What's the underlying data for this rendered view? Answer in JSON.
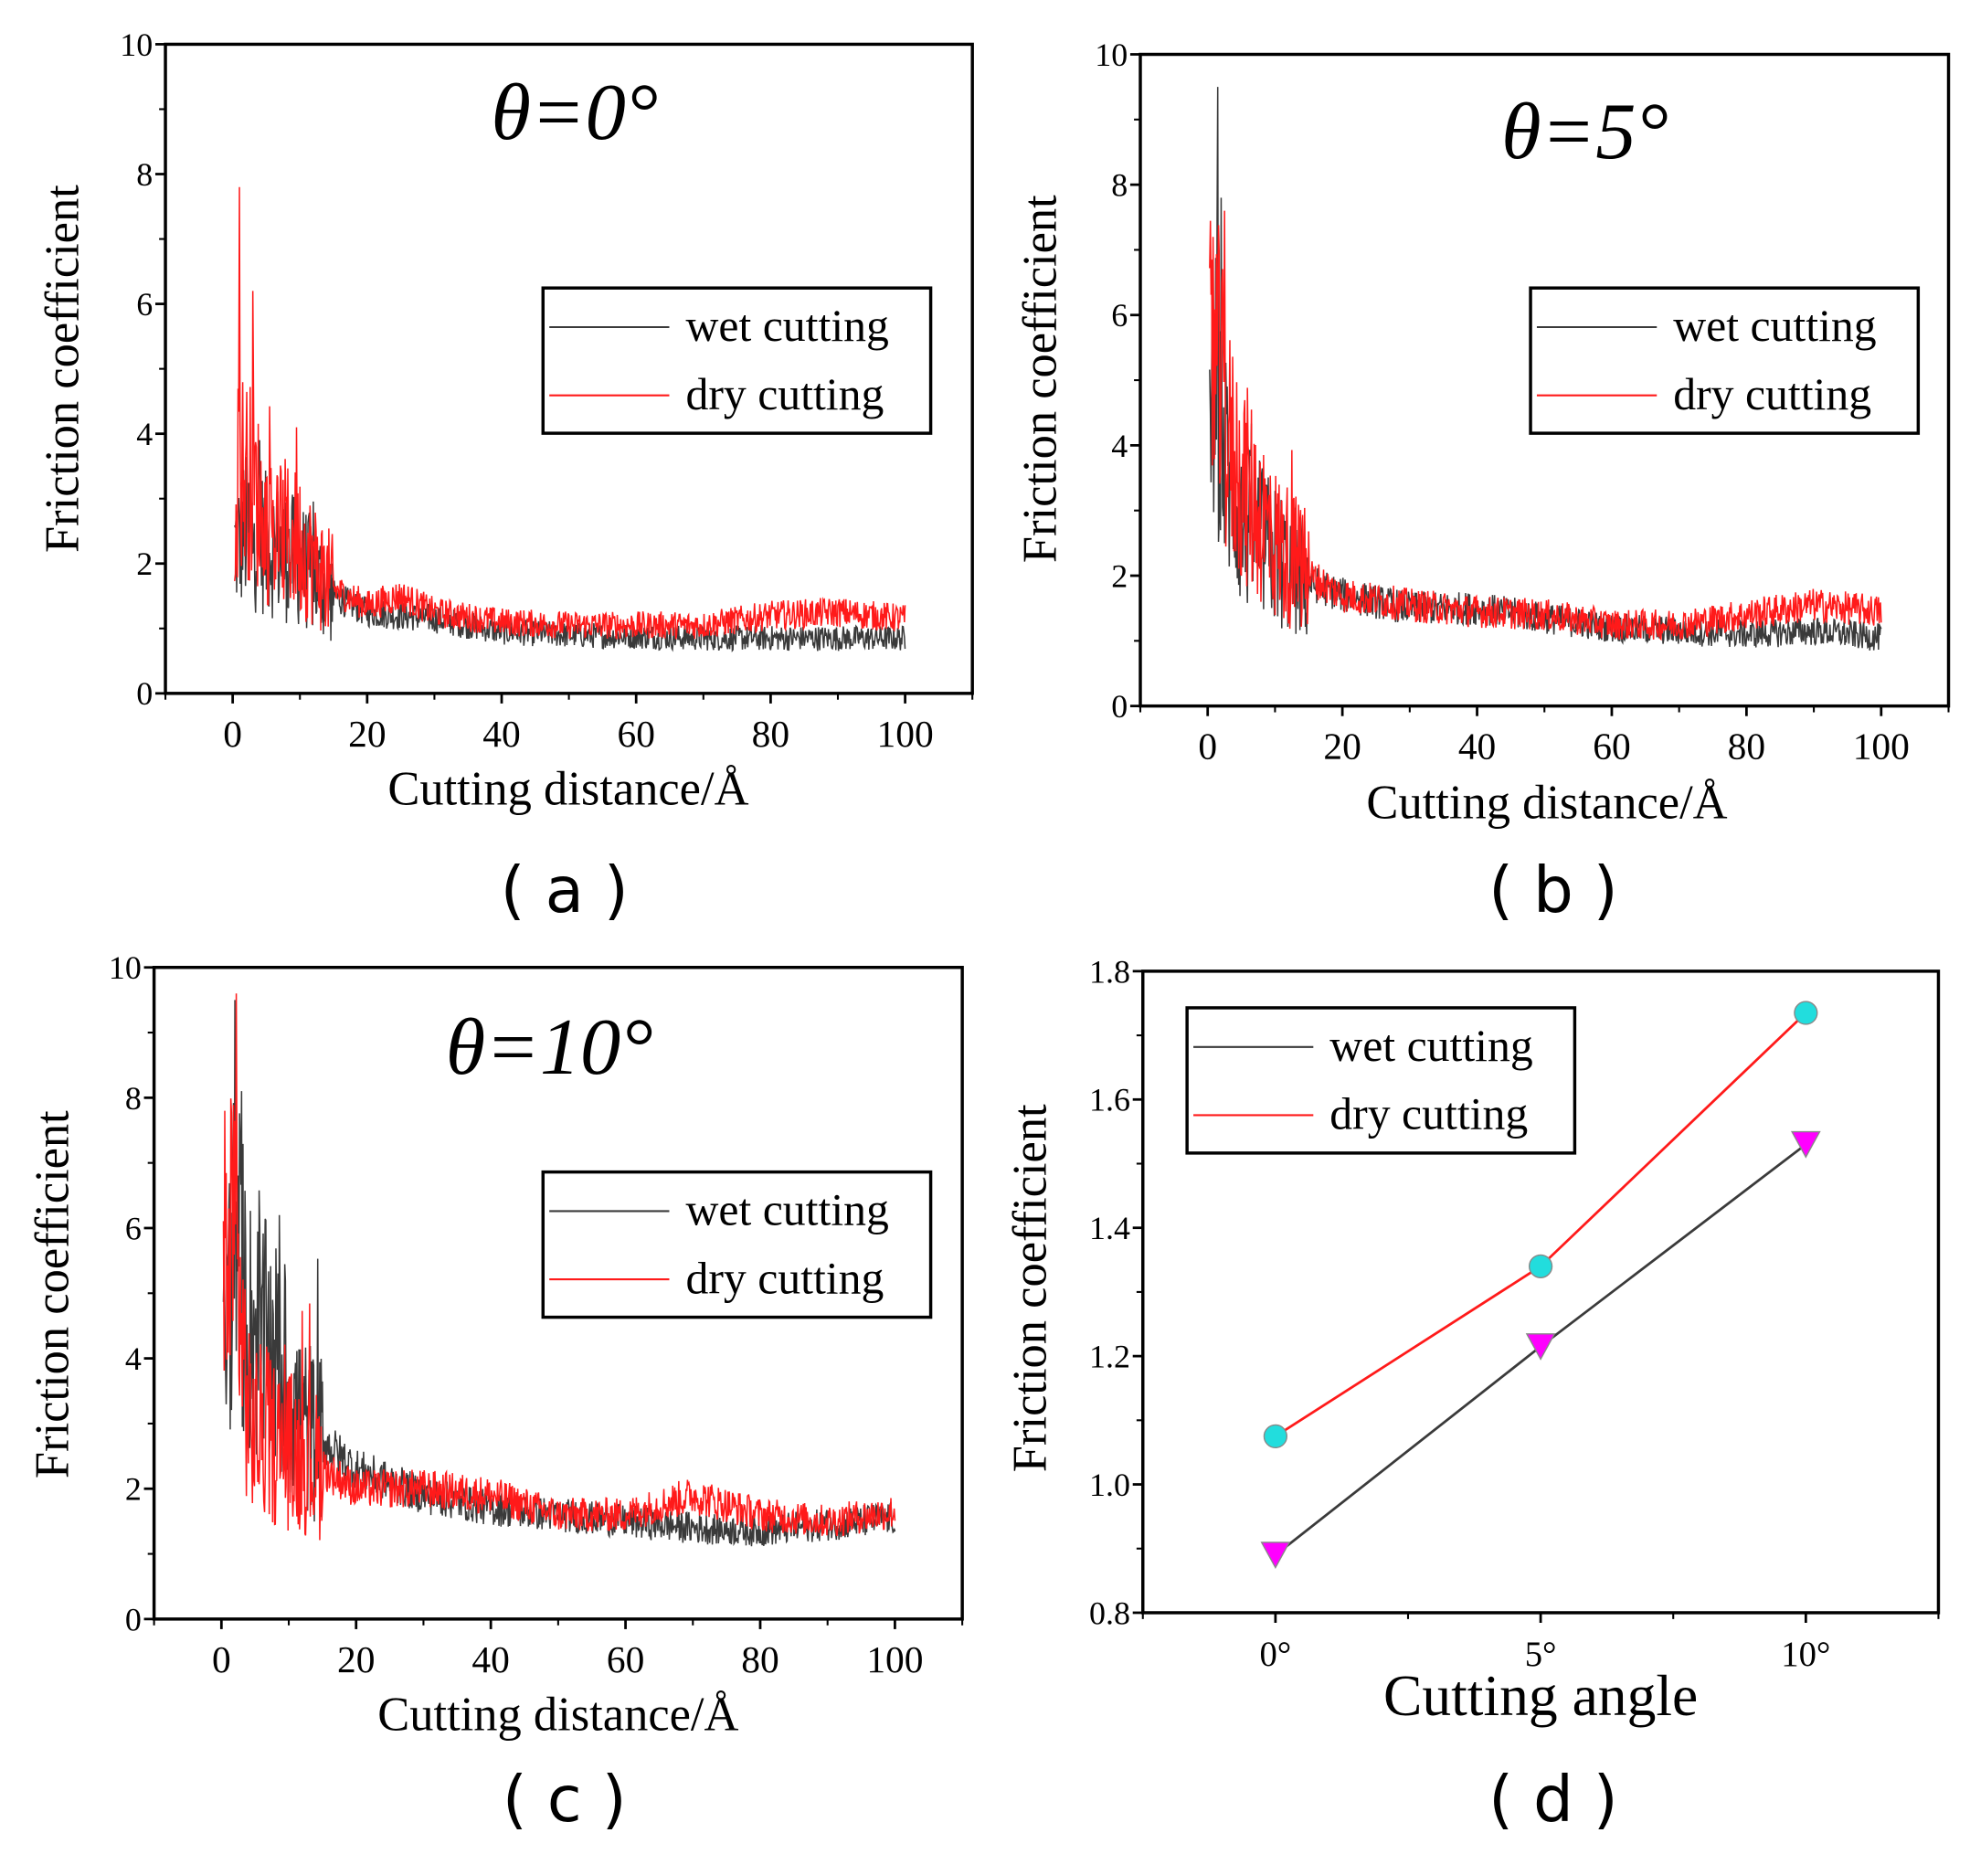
{
  "colors": {
    "wet": "#3a3a3a",
    "dry": "#ff1a1a",
    "wet_marker": "#ff00ff",
    "dry_marker": "#22dddd"
  },
  "legend": {
    "wet": "wet cutting",
    "dry": "dry cutting"
  },
  "chart_data": [
    {
      "id": "a",
      "type": "line",
      "panel_label": "( a )",
      "title": "θ=0°",
      "xlabel": "Cutting distance/Å",
      "ylabel": "Friction coefficient",
      "xlim": [
        -10,
        110
      ],
      "ylim": [
        0,
        10
      ],
      "xticks": [
        "0",
        "20",
        "40",
        "60",
        "80",
        "100"
      ],
      "yticks": [
        "0",
        "2",
        "4",
        "6",
        "8",
        "10"
      ],
      "legend_position": "upper-right",
      "series": [
        {
          "name": "wet cutting",
          "x": [
            0,
            2,
            5,
            10,
            15,
            20,
            30,
            40,
            50,
            60,
            70,
            80,
            90,
            100
          ],
          "y": [
            2.2,
            2.5,
            2.3,
            2.0,
            1.5,
            1.25,
            1.15,
            0.95,
            0.9,
            0.88,
            0.85,
            0.85,
            0.85,
            0.85
          ],
          "peaks": [
            [
              4,
              3.9
            ]
          ]
        },
        {
          "name": "dry cutting",
          "x": [
            0,
            1,
            3,
            5,
            10,
            15,
            20,
            25,
            30,
            40,
            50,
            60,
            70,
            80,
            90,
            100
          ],
          "y": [
            2.8,
            3.5,
            3.2,
            2.6,
            2.3,
            1.6,
            1.35,
            1.5,
            1.25,
            1.1,
            1.05,
            1.05,
            1.05,
            1.2,
            1.25,
            1.15
          ],
          "peaks": [
            [
              1,
              7.8
            ],
            [
              3,
              6.2
            ],
            [
              9.5,
              4.1
            ]
          ]
        }
      ]
    },
    {
      "id": "b",
      "type": "line",
      "panel_label": "( b )",
      "title": "θ=5°",
      "xlabel": "Cutting distance/Å",
      "ylabel": "Friction coefficient",
      "xlim": [
        -10,
        110
      ],
      "ylim": [
        0,
        10
      ],
      "xticks": [
        "0",
        "20",
        "40",
        "60",
        "80",
        "100"
      ],
      "yticks": [
        "0",
        "2",
        "4",
        "6",
        "8",
        "10"
      ],
      "legend_position": "upper-right",
      "series": [
        {
          "name": "wet cutting",
          "x": [
            0,
            1,
            2,
            5,
            10,
            15,
            20,
            30,
            40,
            50,
            60,
            70,
            80,
            90,
            100
          ],
          "y": [
            4,
            5,
            4,
            2.8,
            2.3,
            1.9,
            1.7,
            1.5,
            1.5,
            1.35,
            1.2,
            1.15,
            1.1,
            1.15,
            1.05
          ],
          "peaks": [
            [
              1.5,
              9.5
            ],
            [
              2,
              7.8
            ]
          ]
        },
        {
          "name": "dry cutting",
          "x": [
            0,
            1,
            3,
            5,
            10,
            15,
            20,
            30,
            40,
            50,
            60,
            70,
            80,
            90,
            100
          ],
          "y": [
            5,
            5.5,
            4,
            3.5,
            2.5,
            2,
            1.7,
            1.55,
            1.45,
            1.4,
            1.25,
            1.25,
            1.4,
            1.55,
            1.45
          ],
          "peaks": [
            [
              0.8,
              7.2
            ],
            [
              2.5,
              7.6
            ]
          ]
        }
      ]
    },
    {
      "id": "c",
      "type": "line",
      "panel_label": "( c )",
      "title": "θ=10°",
      "xlabel": "Cutting distance/Å",
      "ylabel": "Friction coefficient",
      "xlim": [
        -10,
        110
      ],
      "ylim": [
        0,
        10
      ],
      "xticks": [
        "0",
        "20",
        "40",
        "60",
        "80",
        "100"
      ],
      "yticks": [
        "0",
        "2",
        "4",
        "6",
        "8",
        "10"
      ],
      "legend_position": "upper-right",
      "series": [
        {
          "name": "wet cutting",
          "x": [
            0,
            2,
            4,
            8,
            12,
            20,
            30,
            40,
            50,
            60,
            70,
            80,
            90,
            100
          ],
          "y": [
            3.5,
            6,
            4.5,
            4,
            3,
            2.3,
            1.9,
            1.7,
            1.6,
            1.5,
            1.4,
            1.35,
            1.45,
            1.55
          ],
          "peaks": [
            [
              2,
              9.5
            ],
            [
              3,
              8.1
            ]
          ]
        },
        {
          "name": "dry cutting",
          "x": [
            0,
            2,
            4,
            8,
            12,
            20,
            30,
            40,
            50,
            60,
            70,
            80,
            90,
            100
          ],
          "y": [
            4.5,
            6,
            3,
            2.7,
            2.5,
            2,
            2,
            1.9,
            1.6,
            1.6,
            1.9,
            1.6,
            1.5,
            1.65
          ],
          "peaks": [
            [
              2.2,
              9.6
            ],
            [
              0.5,
              7.8
            ]
          ]
        }
      ]
    },
    {
      "id": "d",
      "type": "line",
      "panel_label": "( d )",
      "title": "",
      "xlabel": "Cutting angle",
      "ylabel": "Friction coefficient",
      "categories": [
        "0°",
        "5°",
        "10°"
      ],
      "xlim": [
        -0.5,
        2.5
      ],
      "ylim": [
        0.8,
        1.8
      ],
      "yticks": [
        "0.8",
        "1.0",
        "1.2",
        "1.4",
        "1.6",
        "1.8"
      ],
      "legend_position": "upper-left",
      "series": [
        {
          "name": "wet cutting",
          "values": [
            0.89,
            1.215,
            1.53
          ],
          "marker": "down-triangle"
        },
        {
          "name": "dry cutting",
          "values": [
            1.075,
            1.34,
            1.735
          ],
          "marker": "circle"
        }
      ]
    }
  ]
}
